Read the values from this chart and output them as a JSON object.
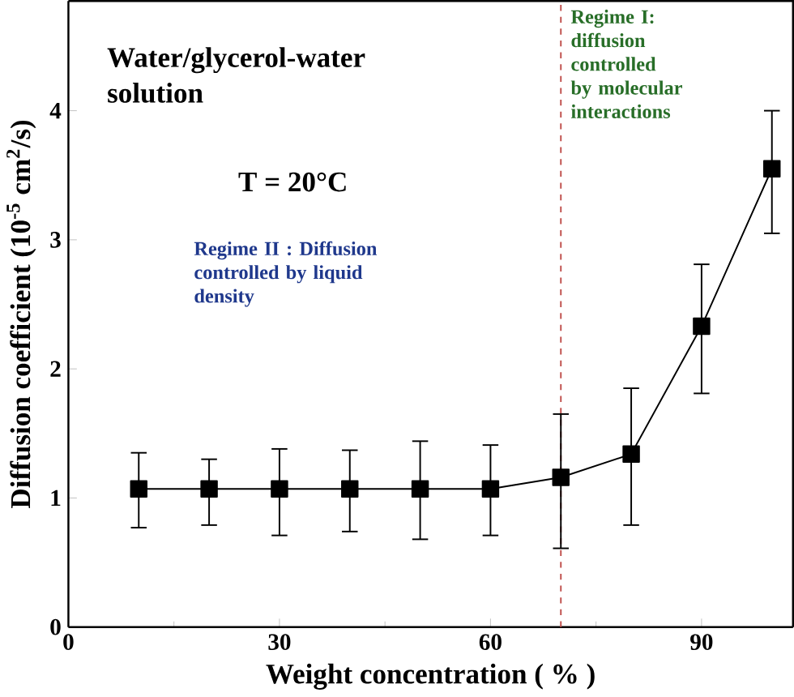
{
  "chart_data": {
    "type": "line",
    "xlabel": "Weight concentration ( % )",
    "ylabel": "Diffusion coefficient (10$^{-5}$ cm$^{2}$/s)",
    "x": [
      10,
      20,
      30,
      40,
      50,
      60,
      70,
      80,
      90,
      100
    ],
    "series": [
      {
        "color": "#000000",
        "values": [
          1.07,
          1.07,
          1.07,
          1.07,
          1.07,
          1.07,
          1.16,
          1.34,
          2.33,
          3.55
        ],
        "errors": [
          [
            0.77,
            1.35
          ],
          [
            0.79,
            1.3
          ],
          [
            0.71,
            1.38
          ],
          [
            0.74,
            1.37
          ],
          [
            0.68,
            1.44
          ],
          [
            0.71,
            1.41
          ],
          [
            0.61,
            1.65
          ],
          [
            0.79,
            1.85
          ],
          [
            1.81,
            2.81
          ],
          [
            3.05,
            4.0
          ]
        ]
      }
    ],
    "marker": "square",
    "xlim": [
      0,
      103
    ],
    "ylim": [
      0,
      4.85
    ],
    "xticks": [
      0,
      30,
      60,
      90
    ],
    "yticks": [
      0,
      1,
      2,
      3,
      4
    ],
    "ref_lines": [
      {
        "axis": "x",
        "value": 70,
        "color": "#c0504d",
        "line_style": "dashed"
      }
    ],
    "annotations": [
      "Water/glycerol-water solution",
      "T = 20°C",
      "Regime II : Diffusion controlled by liquid density",
      "Regime I: diffusion controlled by molecular interactions"
    ]
  }
}
